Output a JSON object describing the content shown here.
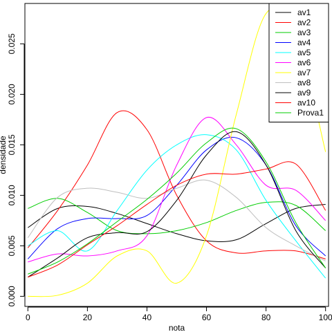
{
  "chart_data": {
    "type": "line",
    "title": "",
    "xlabel": "nota",
    "ylabel": "densidade",
    "xlim": [
      -1,
      101
    ],
    "ylim": [
      -0.001,
      0.029
    ],
    "xticks": [
      0,
      20,
      40,
      60,
      80,
      100
    ],
    "yticks": [
      0.0,
      0.005,
      0.01,
      0.015,
      0.02,
      0.025
    ],
    "ytick_labels": [
      "0.000",
      "0.005",
      "0.010",
      "0.015",
      "0.020",
      "0.025"
    ],
    "grid": false,
    "legend_position": "top-right",
    "x": [
      0,
      10,
      20,
      30,
      40,
      50,
      60,
      70,
      80,
      90,
      100
    ],
    "series": [
      {
        "name": "av1",
        "color": "#000000",
        "values": [
          0.0068,
          0.0087,
          0.0089,
          0.0082,
          0.0072,
          0.0062,
          0.0055,
          0.0056,
          0.0072,
          0.0087,
          0.0091
        ]
      },
      {
        "name": "av2",
        "color": "#ff0000",
        "values": [
          0.0048,
          0.0085,
          0.013,
          0.0182,
          0.0165,
          0.01,
          0.0055,
          0.0043,
          0.0045,
          0.0045,
          0.0037
        ]
      },
      {
        "name": "av3",
        "color": "#00cd00",
        "values": [
          0.0087,
          0.0097,
          0.0083,
          0.0065,
          0.0062,
          0.0065,
          0.0073,
          0.0085,
          0.0093,
          0.009,
          0.0065
        ]
      },
      {
        "name": "av4",
        "color": "#0000ff",
        "values": [
          0.0037,
          0.0067,
          0.0077,
          0.0077,
          0.008,
          0.011,
          0.0145,
          0.0157,
          0.013,
          0.007,
          0.004
        ]
      },
      {
        "name": "av5",
        "color": "#00ffff",
        "values": [
          0.005,
          0.0065,
          0.0045,
          0.0085,
          0.0125,
          0.015,
          0.016,
          0.0145,
          0.0095,
          0.0055,
          0.0018
        ]
      },
      {
        "name": "av6",
        "color": "#ff00ff",
        "values": [
          0.0034,
          0.0042,
          0.004,
          0.0045,
          0.006,
          0.013,
          0.0177,
          0.015,
          0.011,
          0.0105,
          0.0075
        ]
      },
      {
        "name": "av7",
        "color": "#ffff00",
        "values": [
          0.0,
          0.0001,
          0.0013,
          0.004,
          0.0045,
          0.0013,
          0.006,
          0.018,
          0.028,
          0.026,
          0.0143
        ]
      },
      {
        "name": "av8",
        "color": "#bebebe",
        "values": [
          0.0058,
          0.0098,
          0.0107,
          0.0103,
          0.0097,
          0.0107,
          0.0115,
          0.0098,
          0.0068,
          0.005,
          0.0035
        ]
      },
      {
        "name": "av9",
        "color": "#000000",
        "values": [
          0.0019,
          0.0038,
          0.0058,
          0.0063,
          0.0064,
          0.0095,
          0.014,
          0.0163,
          0.013,
          0.0065,
          0.0028
        ]
      },
      {
        "name": "av10",
        "color": "#ff0000",
        "values": [
          0.0019,
          0.0031,
          0.0051,
          0.007,
          0.0091,
          0.011,
          0.0121,
          0.0121,
          0.0126,
          0.0131,
          0.0085
        ]
      },
      {
        "name": "Prova1",
        "color": "#00cd00",
        "values": [
          0.0022,
          0.0034,
          0.0052,
          0.0074,
          0.0096,
          0.0122,
          0.0152,
          0.0166,
          0.0133,
          0.0073,
          0.0028
        ]
      }
    ]
  }
}
